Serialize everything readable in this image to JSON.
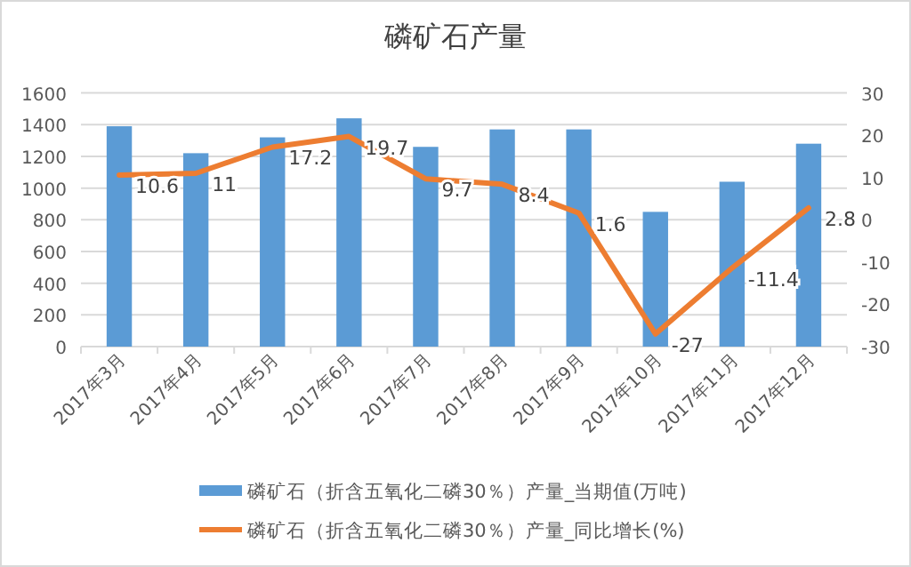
{
  "chart_data": {
    "type": "bar",
    "title": "磷矿石产量",
    "categories": [
      "2017年3月",
      "2017年4月",
      "2017年5月",
      "2017年6月",
      "2017年7月",
      "2017年8月",
      "2017年9月",
      "2017年10月",
      "2017年11月",
      "2017年12月"
    ],
    "series": [
      {
        "name": "磷矿石（折含五氧化二磷30％）产量_当期值(万吨)",
        "color": "#5b9bd5",
        "values": [
          1390,
          1220,
          1320,
          1440,
          1260,
          1370,
          1370,
          850,
          1040,
          1280
        ]
      },
      {
        "name": "磷矿石（折含五氧化二磷30％）产量_同比增长(%)",
        "type": "line",
        "axis": "y2",
        "color": "#ed7d31",
        "values": [
          10.6,
          11,
          17.2,
          19.7,
          9.7,
          8.4,
          1.6,
          -27,
          -11.4,
          2.8
        ],
        "value_labels": [
          "10.6",
          "11",
          "17.2",
          "19.7",
          "9.7",
          "8.4",
          "1.6",
          "-27",
          "-11.4",
          "2.8"
        ]
      }
    ],
    "ylim": [
      0,
      1600
    ],
    "yticks": [
      0,
      200,
      400,
      600,
      800,
      1000,
      1200,
      1400,
      1600
    ],
    "y2lim": [
      -30,
      30
    ],
    "y2ticks": [
      -30,
      -20,
      -10,
      0,
      10,
      20,
      30
    ],
    "grid": "y",
    "legend": "bottom",
    "marker": "none",
    "line_style": "solid"
  }
}
